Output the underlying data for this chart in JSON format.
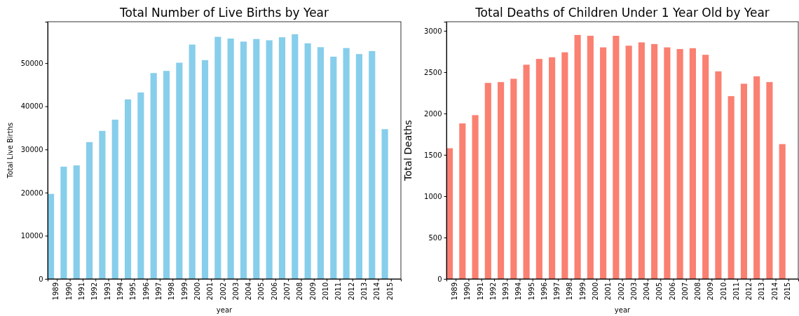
{
  "chart_data": [
    {
      "type": "bar",
      "title": "Total Number of Live Births by Year",
      "xlabel": "year",
      "ylabel": "Total Live Births",
      "categories": [
        "1989",
        "1990",
        "1991",
        "1992",
        "1993",
        "1994",
        "1995",
        "1996",
        "1997",
        "1998",
        "1999",
        "2000",
        "2001",
        "2002",
        "2003",
        "2004",
        "2005",
        "2006",
        "2007",
        "2008",
        "2009",
        "2010",
        "2011",
        "2012",
        "2013",
        "2014",
        "2015"
      ],
      "values": [
        19700,
        26000,
        26300,
        31700,
        34300,
        36900,
        41600,
        43200,
        47700,
        48200,
        50100,
        54300,
        50700,
        56100,
        55700,
        55000,
        55600,
        55300,
        56000,
        56700,
        54600,
        53700,
        51500,
        53500,
        52100,
        52800,
        34700
      ],
      "color": "#87ceeb",
      "ylim": [
        0,
        59600
      ],
      "yticks": [
        0,
        10000,
        20000,
        30000,
        40000,
        50000
      ],
      "grid": false
    },
    {
      "type": "bar",
      "title": "Total Deaths of Children Under 1 Year Old by Year",
      "xlabel": "year",
      "ylabel": "Total Deaths",
      "categories": [
        "1989",
        "1990",
        "1991",
        "1992",
        "1993",
        "1994",
        "1995",
        "1996",
        "1997",
        "1998",
        "1999",
        "2000",
        "2001",
        "2002",
        "2003",
        "2004",
        "2005",
        "2006",
        "2007",
        "2008",
        "2009",
        "2010",
        "2011",
        "2012",
        "2013",
        "2014",
        "2015"
      ],
      "values": [
        1580,
        1880,
        1980,
        2370,
        2380,
        2420,
        2590,
        2660,
        2680,
        2740,
        2950,
        2940,
        2800,
        2940,
        2820,
        2860,
        2840,
        2800,
        2780,
        2790,
        2710,
        2510,
        2210,
        2360,
        2450,
        2380,
        1630
      ],
      "color": "#fa8072",
      "ylim": [
        0,
        3110
      ],
      "yticks": [
        0,
        500,
        1000,
        1500,
        2000,
        2500,
        3000
      ],
      "grid": false
    }
  ]
}
